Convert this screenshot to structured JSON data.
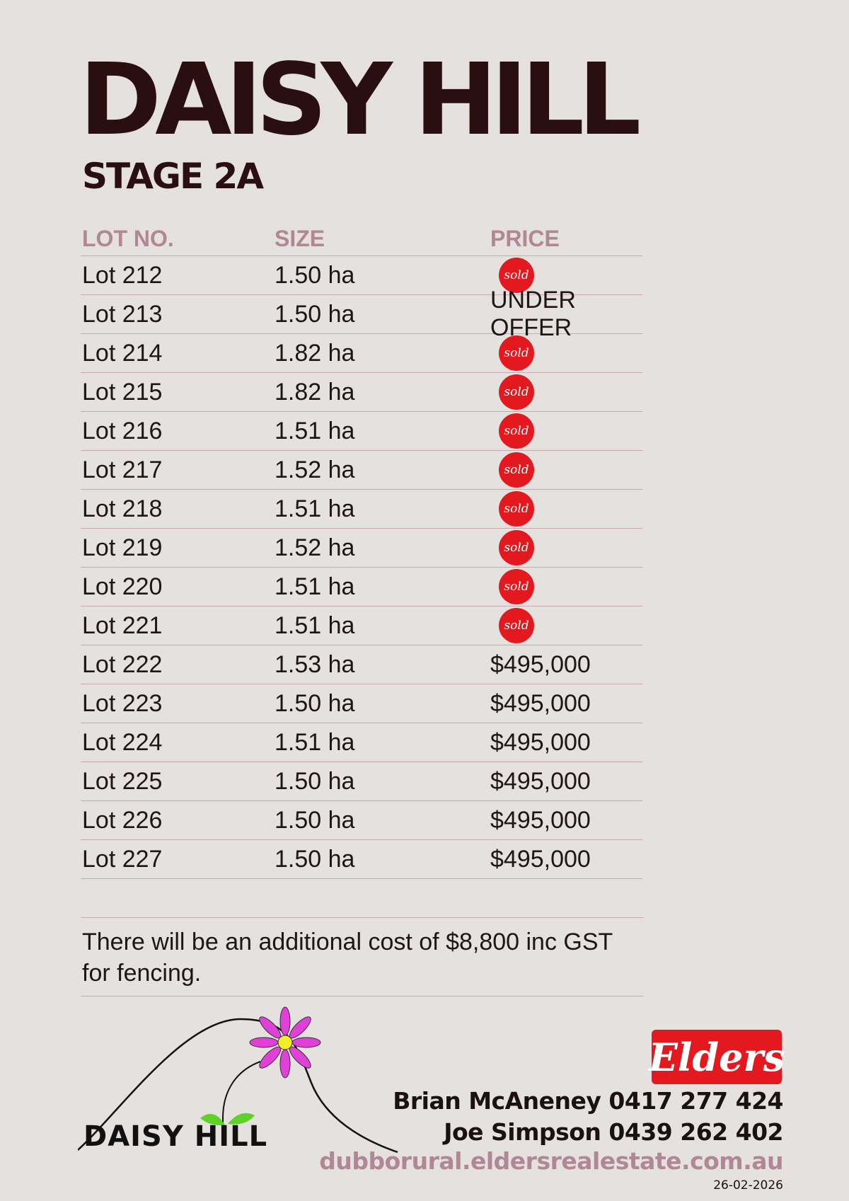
{
  "header": {
    "title": "DAISY HILL",
    "subtitle": "STAGE 2A"
  },
  "table": {
    "columns": [
      "LOT NO.",
      "SIZE",
      "PRICE"
    ],
    "rows": [
      {
        "lot": "Lot 212",
        "size": "1.50 ha",
        "price": "sold"
      },
      {
        "lot": "Lot 213",
        "size": "1.50 ha",
        "price": "UNDER OFFER"
      },
      {
        "lot": "Lot 214",
        "size": "1.82 ha",
        "price": "sold"
      },
      {
        "lot": "Lot 215",
        "size": "1.82 ha",
        "price": "sold"
      },
      {
        "lot": "Lot 216",
        "size": "1.51 ha",
        "price": "sold"
      },
      {
        "lot": "Lot 217",
        "size": "1.52 ha",
        "price": "sold"
      },
      {
        "lot": "Lot 218",
        "size": "1.51 ha",
        "price": "sold"
      },
      {
        "lot": "Lot 219",
        "size": "1.52 ha",
        "price": "sold"
      },
      {
        "lot": "Lot 220",
        "size": "1.51 ha",
        "price": "sold"
      },
      {
        "lot": "Lot 221",
        "size": "1.51 ha",
        "price": "sold"
      },
      {
        "lot": "Lot 222",
        "size": "1.53 ha",
        "price": "$495,000"
      },
      {
        "lot": "Lot 223",
        "size": "1.50 ha",
        "price": "$495,000"
      },
      {
        "lot": "Lot 224",
        "size": "1.51 ha",
        "price": "$495,000"
      },
      {
        "lot": "Lot 225",
        "size": "1.50 ha",
        "price": "$495,000"
      },
      {
        "lot": "Lot 226",
        "size": "1.50 ha",
        "price": "$495,000"
      },
      {
        "lot": "Lot 227",
        "size": "1.50 ha",
        "price": "$495,000"
      }
    ]
  },
  "note": "There will be an additional cost of $8,800 inc GST for fencing.",
  "footer": {
    "logo_text": "DAISY HILL",
    "elders_logo": "Elders",
    "contacts": [
      "Brian McAneney 0417 277 424",
      "Joe Simpson 0439 262 402"
    ],
    "website": "dubborural.eldersrealestate.com.au",
    "date": "26-02-2026"
  },
  "colors": {
    "background": "#e4e1de",
    "title": "#2a0f10",
    "header_text": "#b08796",
    "rule": "#c9a7b3",
    "sold_badge": "#e3191f",
    "flower_petals": "#e040d8",
    "flower_center": "#f4ee2a",
    "leaves": "#5fd22a"
  },
  "icons": {
    "sold_badge": "sold-stamp-icon",
    "logo": "daisy-hill-flower-logo"
  }
}
